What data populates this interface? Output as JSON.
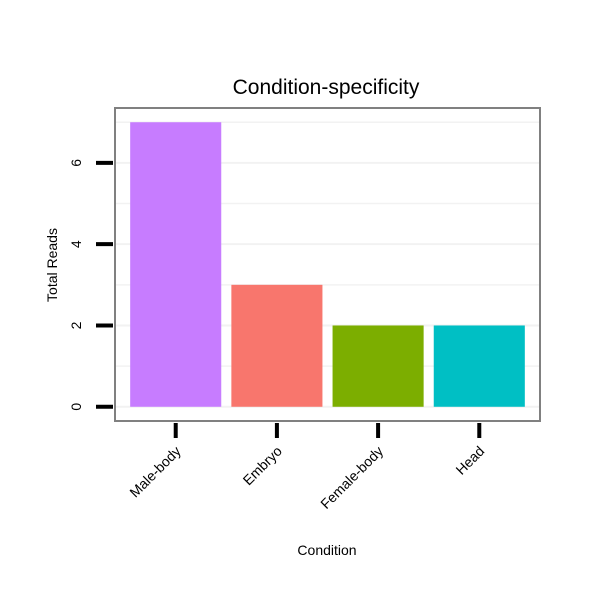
{
  "chart_data": {
    "type": "bar",
    "title": "Condition-specificity",
    "xlabel": "Condition",
    "ylabel": "Total Reads",
    "categories": [
      "Male-body",
      "Embryo",
      "Female-body",
      "Head"
    ],
    "values": [
      7,
      3,
      2,
      2
    ],
    "colors": [
      "#C77CFF",
      "#F8766D",
      "#7CAE00",
      "#00BFC4"
    ],
    "yticks": [
      0,
      2,
      4,
      6
    ],
    "ylim": [
      -0.35,
      7.35
    ],
    "grid": true,
    "legend": "none"
  }
}
